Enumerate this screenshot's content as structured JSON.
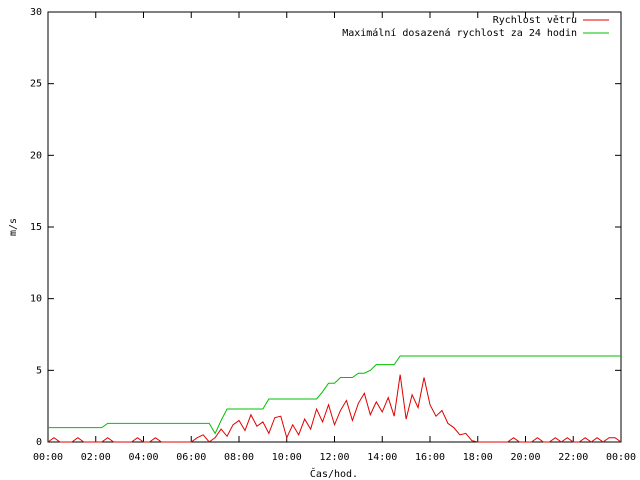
{
  "chart_data": {
    "type": "line",
    "xlabel": "Čas/hod.",
    "ylabel": "m/s",
    "x": [
      0,
      0.25,
      0.5,
      0.75,
      1,
      1.25,
      1.5,
      1.75,
      2,
      2.25,
      2.5,
      2.75,
      3,
      3.25,
      3.5,
      3.75,
      4,
      4.25,
      4.5,
      4.75,
      5,
      5.25,
      5.5,
      5.75,
      6,
      6.25,
      6.5,
      6.75,
      7,
      7.25,
      7.5,
      7.75,
      8,
      8.25,
      8.5,
      8.75,
      9,
      9.25,
      9.5,
      9.75,
      10,
      10.25,
      10.5,
      10.75,
      11,
      11.25,
      11.5,
      11.75,
      12,
      12.25,
      12.5,
      12.75,
      13,
      13.25,
      13.5,
      13.75,
      14,
      14.25,
      14.5,
      14.75,
      15,
      15.25,
      15.5,
      15.75,
      16,
      16.25,
      16.5,
      16.75,
      17,
      17.25,
      17.5,
      17.75,
      18,
      18.25,
      18.5,
      18.75,
      19,
      19.25,
      19.5,
      19.75,
      20,
      20.25,
      20.5,
      20.75,
      21,
      21.25,
      21.5,
      21.75,
      22,
      22.25,
      22.5,
      22.75,
      23,
      23.25,
      23.5,
      23.75,
      24
    ],
    "series": [
      {
        "name": "Rychlost větru",
        "color": "#e00000",
        "values": [
          0,
          0.3,
          0,
          0,
          0,
          0.3,
          0,
          0,
          0,
          0,
          0.3,
          0,
          0,
          0,
          0,
          0.3,
          0,
          0,
          0.3,
          0,
          0,
          0,
          0,
          0,
          0,
          0.3,
          0.5,
          0,
          0.3,
          0.9,
          0.4,
          1.2,
          1.5,
          0.8,
          1.9,
          1.1,
          1.4,
          0.6,
          1.7,
          1.8,
          0.3,
          1.2,
          0.5,
          1.6,
          0.9,
          2.3,
          1.4,
          2.6,
          1.2,
          2.2,
          2.9,
          1.5,
          2.7,
          3.4,
          1.9,
          2.8,
          2.1,
          3.1,
          1.8,
          4.7,
          1.6,
          3.3,
          2.4,
          4.5,
          2.6,
          1.8,
          2.2,
          1.3,
          1.0,
          0.5,
          0.6,
          0.1,
          0,
          0,
          0,
          0,
          0,
          0,
          0.3,
          0,
          0,
          0,
          0.3,
          0,
          0,
          0.3,
          0,
          0.3,
          0,
          0,
          0.3,
          0,
          0.3,
          0,
          0.3,
          0.3,
          0
        ]
      },
      {
        "name": "Maximální dosazená rychlost za 24 hodin",
        "color": "#00c000",
        "values": [
          1,
          1,
          1,
          1,
          1,
          1,
          1,
          1,
          1,
          1,
          1.3,
          1.3,
          1.3,
          1.3,
          1.3,
          1.3,
          1.3,
          1.3,
          1.3,
          1.3,
          1.3,
          1.3,
          1.3,
          1.3,
          1.3,
          1.3,
          1.3,
          1.3,
          0.6,
          1.5,
          2.3,
          2.3,
          2.3,
          2.3,
          2.3,
          2.3,
          2.3,
          3,
          3,
          3,
          3,
          3,
          3,
          3,
          3,
          3,
          3.5,
          4.1,
          4.1,
          4.5,
          4.5,
          4.5,
          4.8,
          4.8,
          5,
          5.4,
          5.4,
          5.4,
          5.4,
          6,
          6,
          6,
          6,
          6,
          6,
          6,
          6,
          6,
          6,
          6,
          6,
          6,
          6,
          6,
          6,
          6,
          6,
          6,
          6,
          6,
          6,
          6,
          6,
          6,
          6,
          6,
          6,
          6,
          6,
          6,
          6,
          6,
          6,
          6,
          6,
          6,
          6
        ]
      }
    ],
    "xlim": [
      0,
      24
    ],
    "xticks": [
      {
        "value": 0,
        "label": "00:00"
      },
      {
        "value": 2,
        "label": "02:00"
      },
      {
        "value": 4,
        "label": "04:00"
      },
      {
        "value": 6,
        "label": "06:00"
      },
      {
        "value": 8,
        "label": "08:00"
      },
      {
        "value": 10,
        "label": "10:00"
      },
      {
        "value": 12,
        "label": "12:00"
      },
      {
        "value": 14,
        "label": "14:00"
      },
      {
        "value": 16,
        "label": "16:00"
      },
      {
        "value": 18,
        "label": "18:00"
      },
      {
        "value": 20,
        "label": "20:00"
      },
      {
        "value": 22,
        "label": "22:00"
      },
      {
        "value": 24,
        "label": "00:00"
      }
    ],
    "ylim": [
      0,
      30
    ],
    "yticks": [
      0,
      5,
      10,
      15,
      20,
      25,
      30
    ],
    "legend": "top-right"
  }
}
